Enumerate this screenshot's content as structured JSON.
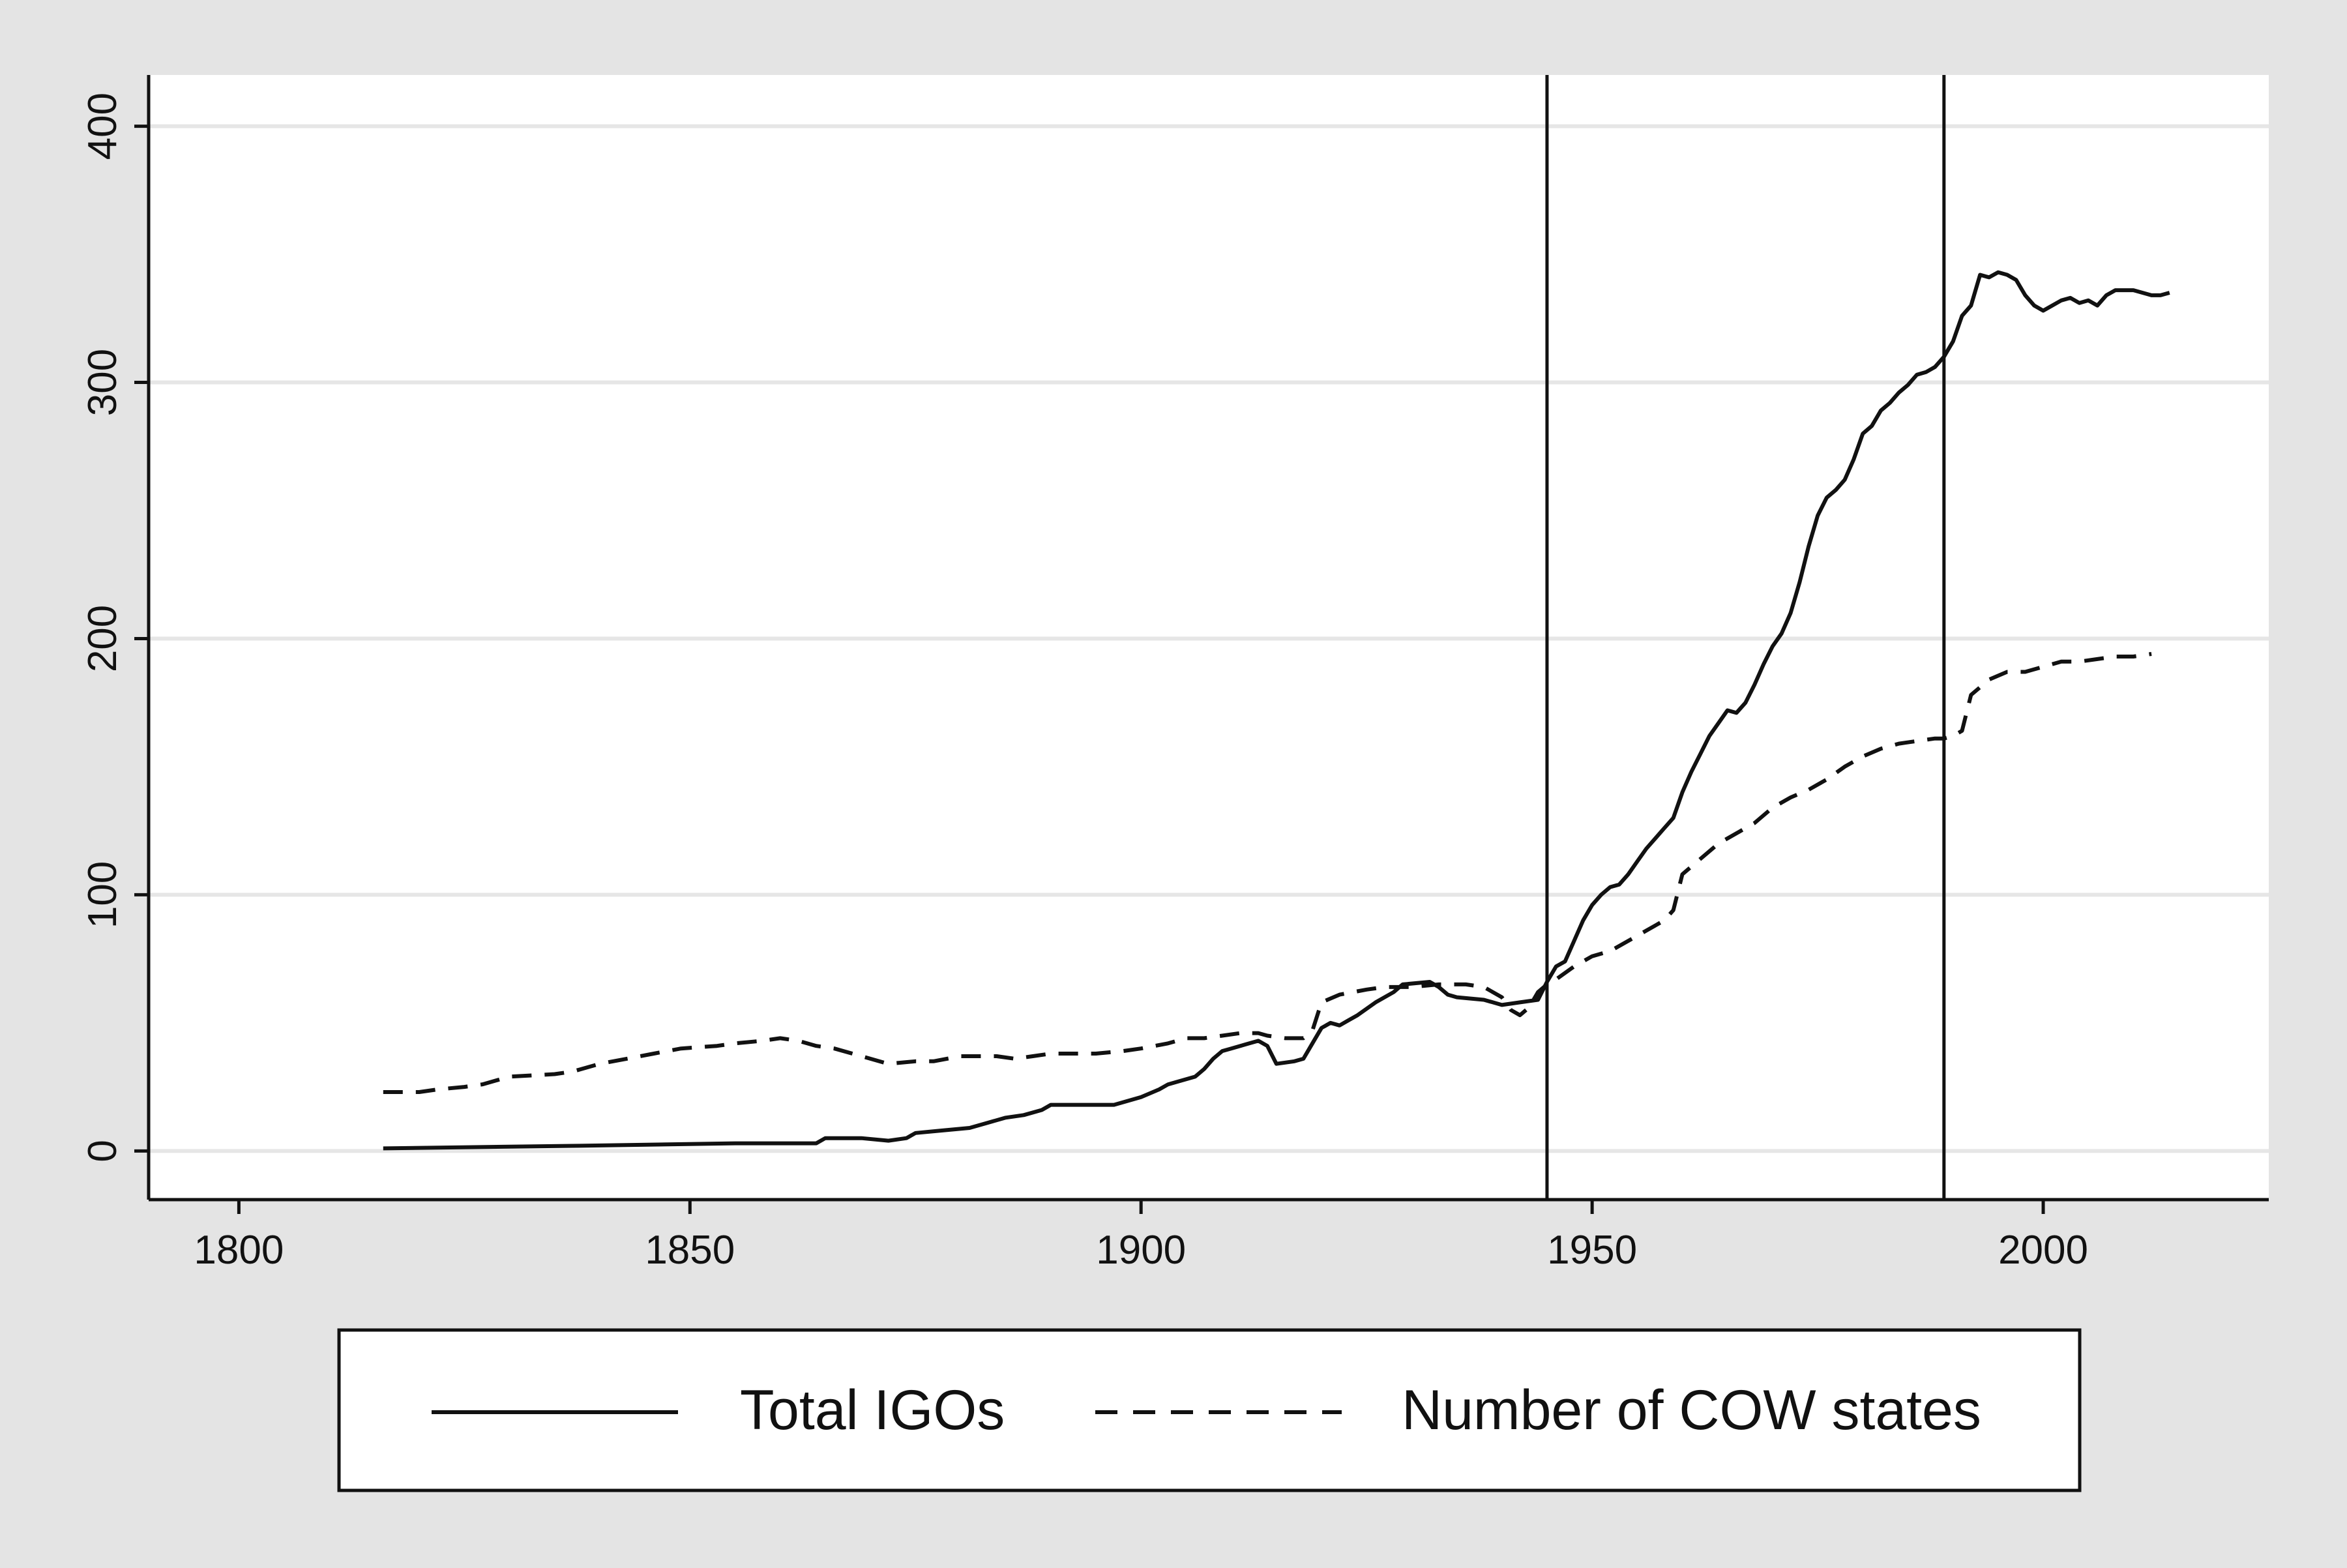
{
  "chart_data": {
    "type": "line",
    "title": "",
    "xlabel": "",
    "ylabel": "",
    "xlim": [
      1790,
      2025
    ],
    "ylim": [
      -19,
      420
    ],
    "x_ticks": [
      1800,
      1850,
      1900,
      1950,
      2000
    ],
    "y_ticks": [
      0,
      100,
      200,
      300,
      400
    ],
    "grid": "horizontal",
    "legend_position": "bottom",
    "vertical_reference_lines": [
      1945,
      1989
    ],
    "series": [
      {
        "name": "Total IGOs",
        "style": "solid",
        "color": "#111111",
        "x": [
          1816,
          1837,
          1855,
          1864,
          1865,
          1869,
          1872,
          1874,
          1875,
          1878,
          1881,
          1883,
          1885,
          1887,
          1889,
          1890,
          1897,
          1900,
          1902,
          1903,
          1904,
          1906,
          1907,
          1908,
          1909,
          1910,
          1912,
          1913,
          1914,
          1915,
          1917,
          1918,
          1919,
          1920,
          1921,
          1922,
          1923,
          1924,
          1926,
          1928,
          1929,
          1932,
          1933,
          1934,
          1935,
          1938,
          1939,
          1940,
          1942,
          1944,
          1945,
          1946,
          1947,
          1948,
          1949,
          1950,
          1951,
          1952,
          1953,
          1954,
          1955,
          1956,
          1957,
          1958,
          1959,
          1960,
          1961,
          1962,
          1963,
          1964,
          1965,
          1966,
          1967,
          1968,
          1969,
          1970,
          1971,
          1972,
          1973,
          1974,
          1975,
          1976,
          1977,
          1978,
          1979,
          1980,
          1981,
          1982,
          1983,
          1984,
          1985,
          1986,
          1987,
          1988,
          1989,
          1990,
          1991,
          1992,
          1993,
          1994,
          1995,
          1996,
          1997,
          1998,
          1999,
          2000,
          2001,
          2002,
          2003,
          2004,
          2005,
          2006,
          2007,
          2008,
          2009,
          2010,
          2011,
          2012,
          2013,
          2014
        ],
        "y": [
          1,
          2,
          3,
          3,
          5,
          5,
          4,
          5,
          7,
          8,
          9,
          11,
          13,
          14,
          16,
          18,
          18,
          21,
          24,
          26,
          27,
          29,
          32,
          36,
          39,
          40,
          42,
          43,
          41,
          34,
          35,
          36,
          42,
          48,
          50,
          49,
          51,
          53,
          58,
          62,
          65,
          66,
          64,
          61,
          60,
          59,
          58,
          57,
          58,
          59,
          66,
          72,
          74,
          82,
          90,
          96,
          100,
          103,
          104,
          108,
          113,
          118,
          122,
          126,
          130,
          140,
          148,
          155,
          162,
          167,
          172,
          171,
          175,
          182,
          190,
          197,
          202,
          210,
          222,
          236,
          248,
          255,
          258,
          262,
          270,
          280,
          283,
          289,
          292,
          296,
          299,
          303,
          304,
          306,
          310,
          316,
          326,
          330,
          342,
          341,
          343,
          342,
          340,
          334,
          330,
          328,
          330,
          332,
          333,
          331,
          332,
          330,
          334,
          336,
          336,
          336,
          335,
          334,
          334,
          335
        ],
        "y_units": "count"
      },
      {
        "name": "Number of COW states",
        "style": "dashed",
        "color": "#111111",
        "x": [
          1816,
          1820,
          1822,
          1825,
          1827,
          1830,
          1835,
          1837,
          1840,
          1843,
          1846,
          1849,
          1853,
          1855,
          1858,
          1860,
          1862,
          1864,
          1866,
          1868,
          1870,
          1872,
          1875,
          1877,
          1880,
          1884,
          1886,
          1888,
          1890,
          1895,
          1898,
          1900,
          1903,
          1905,
          1907,
          1909,
          1911,
          1913,
          1914,
          1916,
          1918,
          1919,
          1920,
          1922,
          1925,
          1927,
          1930,
          1933,
          1936,
          1938,
          1940,
          1941,
          1942,
          1943,
          1944,
          1945,
          1946,
          1948,
          1950,
          1952,
          1954,
          1956,
          1958,
          1959,
          1960,
          1962,
          1964,
          1966,
          1968,
          1970,
          1972,
          1974,
          1976,
          1978,
          1980,
          1982,
          1984,
          1986,
          1988,
          1989,
          1990,
          1991,
          1992,
          1994,
          1996,
          1998,
          2000,
          2002,
          2004,
          2006,
          2008,
          2010,
          2012
        ],
        "y": [
          23,
          23,
          24,
          25,
          26,
          29,
          30,
          31,
          34,
          36,
          38,
          40,
          41,
          42,
          43,
          44,
          43,
          41,
          40,
          38,
          36,
          34,
          35,
          35,
          37,
          37,
          36,
          37,
          38,
          38,
          39,
          40,
          42,
          44,
          44,
          45,
          46,
          46,
          45,
          44,
          44,
          47,
          58,
          61,
          63,
          64,
          64,
          65,
          65,
          64,
          60,
          55,
          53,
          56,
          62,
          65,
          67,
          72,
          76,
          78,
          82,
          86,
          90,
          94,
          108,
          114,
          120,
          124,
          128,
          134,
          138,
          141,
          145,
          150,
          154,
          157,
          159,
          160,
          161,
          161,
          162,
          164,
          178,
          184,
          187,
          187,
          189,
          191,
          191,
          192,
          193,
          193,
          194
        ],
        "y_units": "count"
      }
    ]
  },
  "legend": {
    "items": [
      {
        "label": "Total IGOs",
        "style": "solid"
      },
      {
        "label": "Number of COW states",
        "style": "dashed"
      }
    ]
  },
  "colors": {
    "outer_background": "#e4e4e4",
    "plot_background": "#ffffff",
    "grid": "#e6e6e6",
    "ink": "#111111"
  }
}
